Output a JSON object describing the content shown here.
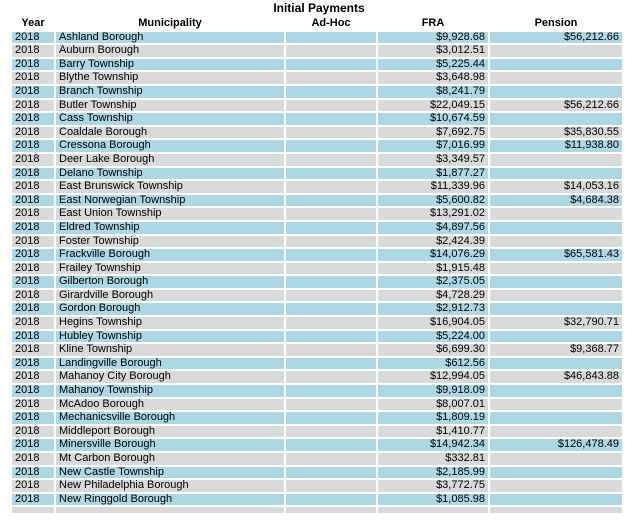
{
  "title": "Initial Payments",
  "colors": {
    "row_alt_blue": "#acd7e5",
    "row_alt_gray": "#d9d9d9",
    "background": "#ffffff",
    "text": "#000000"
  },
  "table": {
    "columns": [
      {
        "label": "Year"
      },
      {
        "label": "Municipality"
      },
      {
        "label": "Ad-Hoc"
      },
      {
        "label": "FRA"
      },
      {
        "label": "Pension"
      }
    ],
    "rows": [
      {
        "year": "2018",
        "municipality": "Ashland Borough",
        "ad_hoc": "",
        "fra": "$9,928.68",
        "pension": "$56,212.66"
      },
      {
        "year": "2018",
        "municipality": "Auburn Borough",
        "ad_hoc": "",
        "fra": "$3,012.51",
        "pension": ""
      },
      {
        "year": "2018",
        "municipality": "Barry Township",
        "ad_hoc": "",
        "fra": "$5,225.44",
        "pension": ""
      },
      {
        "year": "2018",
        "municipality": "Blythe Township",
        "ad_hoc": "",
        "fra": "$3,648.98",
        "pension": ""
      },
      {
        "year": "2018",
        "municipality": "Branch Township",
        "ad_hoc": "",
        "fra": "$8,241.79",
        "pension": ""
      },
      {
        "year": "2018",
        "municipality": "Butler Township",
        "ad_hoc": "",
        "fra": "$22,049.15",
        "pension": "$56,212.66"
      },
      {
        "year": "2018",
        "municipality": "Cass Township",
        "ad_hoc": "",
        "fra": "$10,674.59",
        "pension": ""
      },
      {
        "year": "2018",
        "municipality": "Coaldale Borough",
        "ad_hoc": "",
        "fra": "$7,692.75",
        "pension": "$35,830.55"
      },
      {
        "year": "2018",
        "municipality": "Cressona Borough",
        "ad_hoc": "",
        "fra": "$7,016.99",
        "pension": "$11,938.80"
      },
      {
        "year": "2018",
        "municipality": "Deer Lake Borough",
        "ad_hoc": "",
        "fra": "$3,349.57",
        "pension": ""
      },
      {
        "year": "2018",
        "municipality": "Delano Township",
        "ad_hoc": "",
        "fra": "$1,877.27",
        "pension": ""
      },
      {
        "year": "2018",
        "municipality": "East Brunswick Township",
        "ad_hoc": "",
        "fra": "$11,339.96",
        "pension": "$14,053.16"
      },
      {
        "year": "2018",
        "municipality": "East Norwegian Township",
        "ad_hoc": "",
        "fra": "$5,600.82",
        "pension": "$4,684.38"
      },
      {
        "year": "2018",
        "municipality": "East Union Township",
        "ad_hoc": "",
        "fra": "$13,291.02",
        "pension": ""
      },
      {
        "year": "2018",
        "municipality": "Eldred Township",
        "ad_hoc": "",
        "fra": "$4,897.56",
        "pension": ""
      },
      {
        "year": "2018",
        "municipality": "Foster Township",
        "ad_hoc": "",
        "fra": "$2,424.39",
        "pension": ""
      },
      {
        "year": "2018",
        "municipality": "Frackville Borough",
        "ad_hoc": "",
        "fra": "$14,076.29",
        "pension": "$65,581.43"
      },
      {
        "year": "2018",
        "municipality": "Frailey Township",
        "ad_hoc": "",
        "fra": "$1,915.48",
        "pension": ""
      },
      {
        "year": "2018",
        "municipality": "Gilberton Borough",
        "ad_hoc": "",
        "fra": "$2,375.05",
        "pension": ""
      },
      {
        "year": "2018",
        "municipality": "Girardville Borough",
        "ad_hoc": "",
        "fra": "$4,728.29",
        "pension": ""
      },
      {
        "year": "2018",
        "municipality": "Gordon Borough",
        "ad_hoc": "",
        "fra": "$2,912.73",
        "pension": ""
      },
      {
        "year": "2018",
        "municipality": "Hegins Township",
        "ad_hoc": "",
        "fra": "$16,904.05",
        "pension": "$32,790.71"
      },
      {
        "year": "2018",
        "municipality": "Hubley Township",
        "ad_hoc": "",
        "fra": "$5,224.00",
        "pension": ""
      },
      {
        "year": "2018",
        "municipality": "Kline Township",
        "ad_hoc": "",
        "fra": "$6,699.30",
        "pension": "$9,368.77"
      },
      {
        "year": "2018",
        "municipality": "Landingville Borough",
        "ad_hoc": "",
        "fra": "$612.56",
        "pension": ""
      },
      {
        "year": "2018",
        "municipality": "Mahanoy City Borough",
        "ad_hoc": "",
        "fra": "$12,994.05",
        "pension": "$46,843.88"
      },
      {
        "year": "2018",
        "municipality": "Mahanoy Township",
        "ad_hoc": "",
        "fra": "$9,918.09",
        "pension": ""
      },
      {
        "year": "2018",
        "municipality": "McAdoo Borough",
        "ad_hoc": "",
        "fra": "$8,007.01",
        "pension": ""
      },
      {
        "year": "2018",
        "municipality": "Mechanicsville Borough",
        "ad_hoc": "",
        "fra": "$1,809.19",
        "pension": ""
      },
      {
        "year": "2018",
        "municipality": "Middleport Borough",
        "ad_hoc": "",
        "fra": "$1,410.77",
        "pension": ""
      },
      {
        "year": "2018",
        "municipality": "Minersville Borough",
        "ad_hoc": "",
        "fra": "$14,942.34",
        "pension": "$126,478.49"
      },
      {
        "year": "2018",
        "municipality": "Mt Carbon Borough",
        "ad_hoc": "",
        "fra": "$332.81",
        "pension": ""
      },
      {
        "year": "2018",
        "municipality": "New Castle Township",
        "ad_hoc": "",
        "fra": "$2,185.99",
        "pension": ""
      },
      {
        "year": "2018",
        "municipality": "New Philadelphia Borough",
        "ad_hoc": "",
        "fra": "$3,772.75",
        "pension": ""
      },
      {
        "year": "2018",
        "municipality": "New Ringgold Borough",
        "ad_hoc": "",
        "fra": "$1,085.98",
        "pension": ""
      },
      {
        "year": "",
        "municipality": "",
        "ad_hoc": "",
        "fra": "",
        "pension": ""
      }
    ]
  }
}
